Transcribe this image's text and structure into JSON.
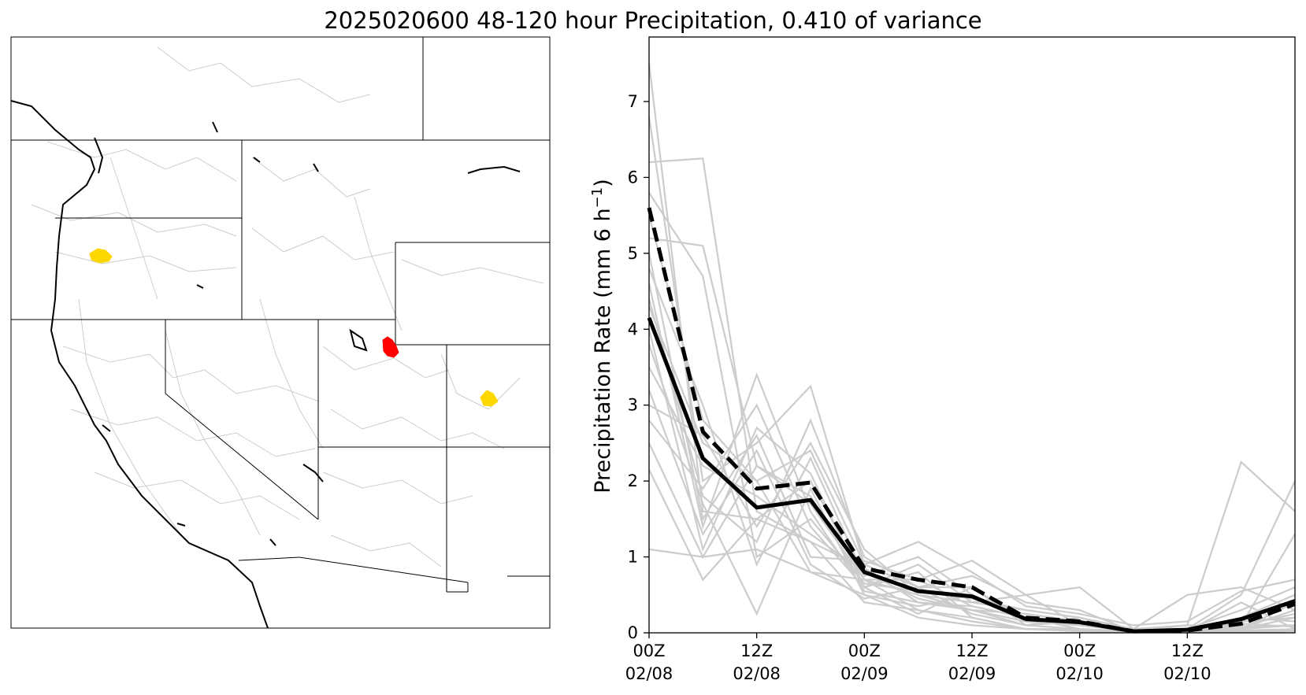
{
  "figure": {
    "title": "2025020600 48-120 hour Precipitation, 0.410 of variance"
  },
  "map": {
    "highlight_colors": {
      "top_basin": "#ff0000",
      "secondary_basin": "#ffd700"
    },
    "border_color": "#000000",
    "basin_color": "#cccccc"
  },
  "chart_data": {
    "type": "line",
    "title": "",
    "xlabel": "",
    "ylabel": "Precipitation Rate (mm 6 h",
    "ylabel_sup": "−1",
    "ylabel_close": ")",
    "x": [
      0,
      6,
      12,
      18,
      24,
      30,
      36,
      42,
      48,
      54,
      60,
      66,
      72
    ],
    "xlim": [
      0,
      72
    ],
    "ylim": [
      0,
      7.85
    ],
    "yticks": [
      "0",
      "1",
      "2",
      "3",
      "4",
      "5",
      "6",
      "7"
    ],
    "xticks": [
      {
        "hour": 0,
        "line1": "00Z",
        "line2": "02/08"
      },
      {
        "hour": 12,
        "line1": "12Z",
        "line2": "02/08"
      },
      {
        "hour": 24,
        "line1": "00Z",
        "line2": "02/09"
      },
      {
        "hour": 36,
        "line1": "12Z",
        "line2": "02/09"
      },
      {
        "hour": 48,
        "line1": "00Z",
        "line2": "02/10"
      },
      {
        "hour": 60,
        "line1": "12Z",
        "line2": "02/10"
      }
    ],
    "series": [
      {
        "style": "solid-black",
        "values": [
          4.15,
          2.3,
          1.65,
          1.75,
          0.8,
          0.55,
          0.48,
          0.18,
          0.14,
          0.02,
          0.04,
          0.18,
          0.42
        ]
      },
      {
        "style": "dashed-black",
        "values": [
          5.6,
          2.65,
          1.9,
          1.98,
          0.85,
          0.7,
          0.6,
          0.2,
          0.15,
          0.02,
          0.03,
          0.12,
          0.38
        ]
      }
    ],
    "members": [
      [
        7.5,
        1.6,
        1.5,
        2.0,
        0.7,
        0.5,
        0.3,
        0.15,
        0.1,
        0.02,
        0.05,
        0.3,
        0.6
      ],
      [
        6.8,
        2.0,
        2.5,
        3.25,
        0.9,
        0.6,
        0.6,
        0.1,
        0.15,
        0.03,
        0.02,
        0.2,
        0.5
      ],
      [
        6.2,
        6.25,
        1.6,
        1.2,
        0.85,
        0.4,
        0.35,
        0.2,
        0.1,
        0.05,
        0.1,
        2.25,
        1.6
      ],
      [
        5.8,
        4.7,
        1.0,
        1.5,
        0.65,
        0.55,
        0.45,
        0.3,
        0.2,
        0.02,
        0.05,
        0.5,
        2.0
      ],
      [
        5.2,
        5.1,
        2.2,
        1.8,
        0.6,
        0.8,
        0.2,
        0.05,
        0.05,
        0.01,
        0.02,
        0.1,
        1.3
      ],
      [
        5.0,
        1.5,
        2.6,
        1.0,
        0.95,
        0.7,
        0.95,
        0.5,
        0.1,
        0.05,
        0.5,
        0.6,
        0.3
      ],
      [
        4.8,
        3.0,
        0.9,
        2.3,
        0.75,
        1.0,
        0.5,
        0.2,
        0.05,
        0.02,
        0.02,
        0.15,
        0.2
      ],
      [
        4.6,
        1.4,
        3.4,
        1.6,
        0.55,
        0.4,
        0.3,
        0.1,
        0.2,
        0.04,
        0.01,
        0.05,
        0.1
      ],
      [
        4.4,
        1.8,
        1.2,
        2.8,
        1.0,
        0.6,
        0.75,
        0.4,
        0.3,
        0.02,
        0.1,
        0.05,
        0.4
      ],
      [
        4.3,
        2.5,
        2.0,
        0.8,
        0.7,
        0.3,
        0.2,
        0.05,
        0.05,
        0.01,
        0.02,
        0.2,
        0.15
      ],
      [
        4.0,
        1.1,
        2.7,
        2.1,
        0.6,
        0.9,
        0.4,
        0.3,
        0.2,
        0.05,
        0.05,
        0.1,
        0.25
      ],
      [
        3.8,
        1.7,
        0.25,
        1.9,
        0.5,
        0.35,
        0.5,
        0.2,
        0.1,
        0.03,
        0.02,
        0.4,
        0.05
      ],
      [
        3.5,
        2.2,
        1.8,
        1.3,
        0.8,
        0.45,
        0.3,
        0.25,
        0.15,
        0.01,
        0.03,
        0.08,
        0.1
      ],
      [
        3.2,
        1.3,
        2.4,
        0.9,
        0.45,
        0.6,
        0.25,
        0.1,
        0.05,
        0.02,
        0.01,
        0.05,
        0.2
      ],
      [
        3.0,
        2.6,
        1.4,
        2.5,
        1.1,
        0.5,
        0.4,
        0.5,
        0.6,
        0.05,
        0.02,
        0.12,
        0.08
      ],
      [
        2.8,
        1.9,
        3.0,
        1.4,
        0.6,
        0.25,
        0.6,
        0.15,
        0.1,
        0.02,
        0.03,
        0.03,
        0.05
      ],
      [
        2.5,
        1.0,
        2.2,
        1.7,
        0.7,
        0.7,
        0.35,
        0.2,
        0.05,
        0.01,
        0.02,
        0.06,
        0.3
      ],
      [
        2.15,
        0.7,
        1.5,
        1.2,
        0.4,
        0.3,
        0.15,
        0.05,
        0.03,
        0.01,
        0.01,
        0.02,
        0.04
      ],
      [
        1.1,
        1.0,
        1.1,
        0.8,
        0.5,
        0.2,
        0.1,
        0.05,
        0.02,
        0.01,
        0.01,
        0.01,
        0.02
      ],
      [
        5.5,
        2.8,
        2.0,
        2.4,
        0.9,
        1.2,
        0.8,
        0.35,
        0.25,
        0.1,
        0.15,
        0.55,
        0.7
      ]
    ]
  }
}
